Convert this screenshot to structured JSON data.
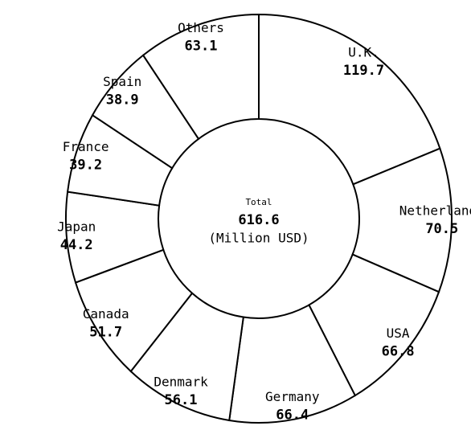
{
  "chart_data": {
    "type": "donut",
    "categories": [
      "U.K.",
      "Netherlands",
      "USA",
      "Germany",
      "Denmark",
      "Canada",
      "Japan",
      "France",
      "Spain",
      "Others"
    ],
    "values": [
      119.7,
      70.5,
      66.8,
      66.4,
      56.1,
      51.7,
      44.2,
      39.2,
      38.9,
      63.1
    ],
    "color": "#ffffff",
    "center_title": "Total",
    "total": 616.6,
    "center_unit": "(Million USD)"
  }
}
